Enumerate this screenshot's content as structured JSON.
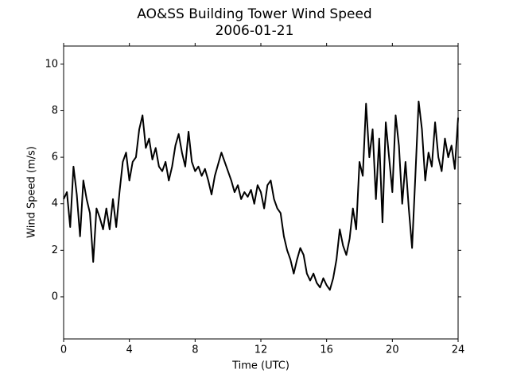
{
  "chart_data": {
    "type": "line",
    "title": "AO&SS Building Tower Wind Speed",
    "subtitle": "2006-01-21",
    "x_label": "Time (UTC)",
    "y_label": "Wind Speed (m/s)",
    "x": [
      0,
      0.2,
      0.4,
      0.6,
      0.8,
      1,
      1.2,
      1.4,
      1.6,
      1.8,
      2,
      2.2,
      2.4,
      2.6,
      2.8,
      3,
      3.2,
      3.4,
      3.6,
      3.8,
      4,
      4.2,
      4.4,
      4.6,
      4.8,
      5,
      5.2,
      5.4,
      5.6,
      5.8,
      6,
      6.2,
      6.4,
      6.6,
      6.8,
      7,
      7.2,
      7.4,
      7.6,
      7.8,
      8,
      8.2,
      8.4,
      8.6,
      8.8,
      9,
      9.2,
      9.4,
      9.6,
      9.8,
      10,
      10.2,
      10.4,
      10.6,
      10.8,
      11,
      11.2,
      11.4,
      11.6,
      11.8,
      12,
      12.2,
      12.4,
      12.6,
      12.8,
      13,
      13.2,
      13.4,
      13.6,
      13.8,
      14,
      14.2,
      14.4,
      14.6,
      14.8,
      15,
      15.2,
      15.4,
      15.6,
      15.8,
      16,
      16.2,
      16.4,
      16.6,
      16.8,
      17,
      17.2,
      17.4,
      17.6,
      17.8,
      18,
      18.2,
      18.4,
      18.6,
      18.8,
      19,
      19.2,
      19.4,
      19.6,
      19.8,
      20,
      20.2,
      20.4,
      20.6,
      20.8,
      21,
      21.2,
      21.4,
      21.6,
      21.8,
      22,
      22.2,
      22.4,
      22.6,
      22.8,
      23,
      23.2,
      23.4,
      23.6,
      23.8,
      24
    ],
    "series": [
      {
        "color": "#000000",
        "values": [
          4.2,
          4.5,
          3.0,
          5.6,
          4.4,
          2.6,
          5.0,
          4.2,
          3.6,
          1.5,
          3.8,
          3.4,
          2.9,
          3.8,
          2.9,
          4.2,
          3.0,
          4.5,
          5.8,
          6.2,
          5.0,
          5.8,
          6.0,
          7.2,
          7.8,
          6.4,
          6.8,
          5.9,
          6.4,
          5.6,
          5.4,
          5.8,
          5.0,
          5.6,
          6.5,
          7.0,
          6.2,
          5.6,
          7.1,
          5.8,
          5.4,
          5.6,
          5.2,
          5.5,
          5.0,
          4.4,
          5.2,
          5.7,
          6.2,
          5.8,
          5.4,
          5.0,
          4.5,
          4.8,
          4.2,
          4.5,
          4.3,
          4.6,
          4.0,
          4.8,
          4.5,
          3.8,
          4.8,
          5.0,
          4.2,
          3.8,
          3.6,
          2.6,
          2.0,
          1.6,
          1.0,
          1.6,
          2.1,
          1.8,
          1.0,
          0.7,
          1.0,
          0.6,
          0.4,
          0.8,
          0.5,
          0.3,
          0.8,
          1.6,
          2.9,
          2.2,
          1.8,
          2.5,
          3.8,
          2.9,
          5.8,
          5.2,
          8.3,
          6.0,
          7.2,
          4.2,
          6.8,
          3.2,
          7.5,
          6.0,
          4.5,
          7.8,
          6.5,
          4.0,
          5.8,
          3.8,
          2.1,
          5.2,
          8.4,
          7.2,
          5.0,
          6.2,
          5.6,
          7.5,
          6.0,
          5.4,
          6.8,
          6.0,
          6.5,
          5.5,
          7.7
        ]
      }
    ],
    "xlim": [
      0,
      24
    ],
    "xticks": [
      0,
      4,
      8,
      12,
      16,
      20,
      24
    ],
    "ylim": [
      -1.81,
      10.78
    ],
    "yticks": [
      0,
      2,
      4,
      6,
      8,
      10
    ]
  }
}
